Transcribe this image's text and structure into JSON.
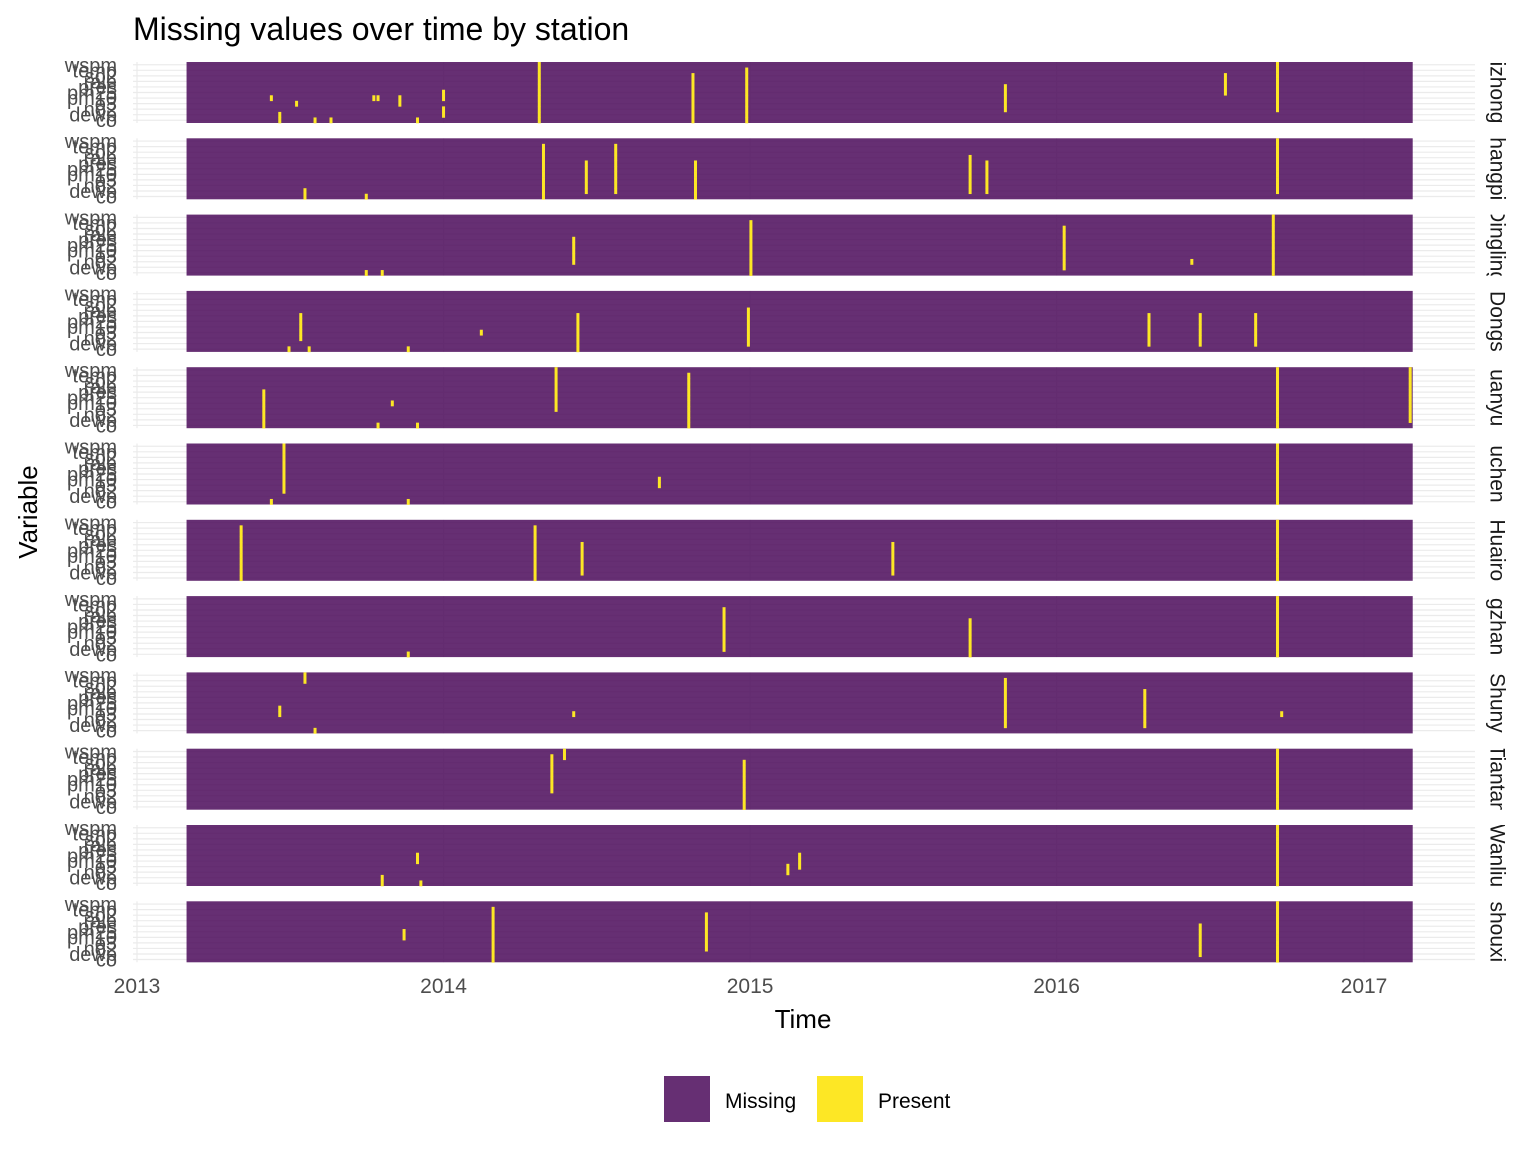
{
  "chart_data": {
    "type": "heatmap",
    "title": "Missing values over time by station",
    "xlabel": "Time",
    "ylabel": "Variable",
    "x_ticks": [
      "2013",
      "2014",
      "2015",
      "2016",
      "2017"
    ],
    "x_range": [
      "2013-03-01",
      "2017-02-28"
    ],
    "y_tick_labels": [
      "wspm",
      "temp",
      "so2",
      "rain",
      "pres",
      "pm25",
      "pm10",
      "o3",
      "no2",
      "dewp",
      "co"
    ],
    "stations": [
      "Aotizhongxin",
      "Changping",
      "Dingling",
      "Dongsi",
      "Guanyuan",
      "Gucheng",
      "Huairou",
      "Nongzhanguan",
      "Shunyi",
      "Tiantan",
      "Wanliu",
      "Wanshouxigong"
    ],
    "station_labels_visible": [
      "izhong",
      "hangpi",
      "Dingling",
      "Dongs",
      "uanyu",
      "uchen",
      "Huairo",
      "gzhan",
      "Shuny",
      "Tiantan",
      "Wanliu",
      "shouxi"
    ],
    "legend": {
      "position": "bottom",
      "entries": [
        {
          "label": "Missing",
          "color": "#440154"
        },
        {
          "label": "Present",
          "color": "#FDE725"
        }
      ]
    },
    "fill_alpha_missing": 0.82,
    "present_events": [
      [
        {
          "date": "2013-06-10",
          "vars": [
            "pm10"
          ]
        },
        {
          "date": "2013-06-20",
          "vars": [
            "dewp",
            "co"
          ]
        },
        {
          "date": "2013-07-10",
          "vars": [
            "o3"
          ]
        },
        {
          "date": "2013-08-01",
          "vars": [
            "co"
          ]
        },
        {
          "date": "2013-08-20",
          "vars": [
            "co"
          ]
        },
        {
          "date": "2013-10-10",
          "vars": [
            "pm10"
          ]
        },
        {
          "date": "2013-10-15",
          "vars": [
            "pm10"
          ]
        },
        {
          "date": "2013-11-10",
          "vars": [
            "pm10",
            "o3"
          ]
        },
        {
          "date": "2013-12-01",
          "vars": [
            "co"
          ]
        },
        {
          "date": "2014-01-01",
          "vars": [
            "pm25",
            "pm10",
            "no2",
            "dewp"
          ]
        },
        {
          "date": "2014-04-25",
          "vars": [
            "wspm",
            "temp",
            "so2",
            "rain",
            "pres",
            "pm25",
            "pm10",
            "o3",
            "no2",
            "dewp",
            "co"
          ]
        },
        {
          "date": "2014-10-25",
          "vars": [
            "so2",
            "rain",
            "pres",
            "pm25",
            "pm10",
            "o3",
            "no2",
            "dewp",
            "co"
          ]
        },
        {
          "date": "2014-12-28",
          "vars": [
            "temp",
            "so2",
            "rain",
            "pres",
            "pm25",
            "pm10",
            "o3",
            "no2",
            "dewp",
            "co"
          ]
        },
        {
          "date": "2015-11-01",
          "vars": [
            "pres",
            "pm25",
            "pm10",
            "o3",
            "no2"
          ]
        },
        {
          "date": "2016-07-20",
          "vars": [
            "so2",
            "rain",
            "pres",
            "pm25"
          ]
        },
        {
          "date": "2016-09-20",
          "vars": [
            "wspm",
            "temp",
            "so2",
            "rain",
            "pres",
            "pm25",
            "pm10",
            "o3",
            "no2"
          ]
        }
      ],
      [
        {
          "date": "2013-07-20",
          "vars": [
            "dewp",
            "co"
          ]
        },
        {
          "date": "2013-10-01",
          "vars": [
            "co"
          ]
        },
        {
          "date": "2014-04-30",
          "vars": [
            "temp",
            "so2",
            "rain",
            "pres",
            "pm25",
            "pm10",
            "o3",
            "no2",
            "dewp",
            "co"
          ]
        },
        {
          "date": "2014-06-20",
          "vars": [
            "pres",
            "pm25",
            "pm10",
            "o3",
            "no2",
            "dewp"
          ]
        },
        {
          "date": "2014-07-25",
          "vars": [
            "temp",
            "so2",
            "rain",
            "pres",
            "pm25",
            "pm10",
            "o3",
            "no2",
            "dewp"
          ]
        },
        {
          "date": "2014-10-28",
          "vars": [
            "pres",
            "pm25",
            "pm10",
            "o3",
            "no2",
            "dewp",
            "co"
          ]
        },
        {
          "date": "2015-09-20",
          "vars": [
            "rain",
            "pres",
            "pm25",
            "pm10",
            "o3",
            "no2",
            "dewp"
          ]
        },
        {
          "date": "2015-10-10",
          "vars": [
            "pres",
            "pm25",
            "pm10",
            "o3",
            "no2",
            "dewp"
          ]
        },
        {
          "date": "2016-09-20",
          "vars": [
            "wspm",
            "temp",
            "so2",
            "rain",
            "pres",
            "pm25",
            "pm10",
            "o3",
            "no2",
            "dewp"
          ]
        }
      ],
      [
        {
          "date": "2013-10-01",
          "vars": [
            "co"
          ]
        },
        {
          "date": "2013-10-20",
          "vars": [
            "co"
          ]
        },
        {
          "date": "2014-06-05",
          "vars": [
            "pres",
            "pm25",
            "pm10",
            "o3",
            "no2"
          ]
        },
        {
          "date": "2015-01-02",
          "vars": [
            "temp",
            "so2",
            "rain",
            "pres",
            "pm25",
            "pm10",
            "o3",
            "no2",
            "dewp",
            "co"
          ]
        },
        {
          "date": "2016-01-10",
          "vars": [
            "so2",
            "rain",
            "pres",
            "pm25",
            "pm10",
            "o3",
            "no2",
            "dewp"
          ]
        },
        {
          "date": "2016-06-10",
          "vars": [
            "no2"
          ]
        },
        {
          "date": "2016-09-15",
          "vars": [
            "wspm",
            "temp",
            "so2",
            "rain",
            "pres",
            "pm25",
            "pm10",
            "o3",
            "no2",
            "dewp",
            "co"
          ]
        }
      ],
      [
        {
          "date": "2013-07-01",
          "vars": [
            "co"
          ]
        },
        {
          "date": "2013-07-25",
          "vars": [
            "co"
          ]
        },
        {
          "date": "2013-07-15",
          "vars": [
            "pres",
            "pm25",
            "pm10",
            "o3",
            "no2"
          ]
        },
        {
          "date": "2013-11-20",
          "vars": [
            "co"
          ]
        },
        {
          "date": "2014-02-15",
          "vars": [
            "o3"
          ]
        },
        {
          "date": "2014-06-10",
          "vars": [
            "pres",
            "pm25",
            "pm10",
            "o3",
            "no2",
            "dewp",
            "co"
          ]
        },
        {
          "date": "2014-12-30",
          "vars": [
            "rain",
            "pres",
            "pm25",
            "pm10",
            "o3",
            "no2",
            "dewp"
          ]
        },
        {
          "date": "2016-04-20",
          "vars": [
            "pres",
            "pm25",
            "pm10",
            "o3",
            "no2",
            "dewp"
          ]
        },
        {
          "date": "2016-06-20",
          "vars": [
            "pres",
            "pm25",
            "pm10",
            "o3",
            "no2",
            "dewp"
          ]
        },
        {
          "date": "2016-08-25",
          "vars": [
            "pres",
            "pm25",
            "pm10",
            "o3",
            "no2",
            "dewp"
          ]
        }
      ],
      [
        {
          "date": "2013-06-01",
          "vars": [
            "pres",
            "pm25",
            "pm10",
            "o3",
            "no2",
            "dewp",
            "co"
          ]
        },
        {
          "date": "2013-11-01",
          "vars": [
            "pm10"
          ]
        },
        {
          "date": "2013-10-15",
          "vars": [
            "co"
          ]
        },
        {
          "date": "2013-12-01",
          "vars": [
            "co"
          ]
        },
        {
          "date": "2014-05-15",
          "vars": [
            "wspm",
            "temp",
            "so2",
            "rain",
            "pres",
            "pm25",
            "pm10",
            "o3"
          ]
        },
        {
          "date": "2014-10-20",
          "vars": [
            "temp",
            "so2",
            "rain",
            "pres",
            "pm25",
            "pm10",
            "o3",
            "no2",
            "dewp",
            "co"
          ]
        },
        {
          "date": "2016-09-20",
          "vars": [
            "wspm",
            "temp",
            "so2",
            "rain",
            "pres",
            "pm25",
            "pm10",
            "o3",
            "no2",
            "dewp",
            "co"
          ]
        },
        {
          "date": "2017-02-25",
          "vars": [
            "wspm",
            "temp",
            "so2",
            "rain",
            "pres",
            "pm25",
            "pm10",
            "o3",
            "no2",
            "dewp"
          ]
        }
      ],
      [
        {
          "date": "2013-06-25",
          "vars": [
            "wspm",
            "temp",
            "so2",
            "rain",
            "pres",
            "pm25",
            "pm10",
            "o3",
            "no2"
          ]
        },
        {
          "date": "2013-06-10",
          "vars": [
            "co"
          ]
        },
        {
          "date": "2013-11-20",
          "vars": [
            "co"
          ]
        },
        {
          "date": "2014-09-15",
          "vars": [
            "pm10",
            "o3"
          ]
        },
        {
          "date": "2016-09-20",
          "vars": [
            "wspm",
            "temp",
            "so2",
            "rain",
            "pres",
            "pm25",
            "pm10",
            "o3",
            "no2",
            "dewp",
            "co"
          ]
        }
      ],
      [
        {
          "date": "2013-05-05",
          "vars": [
            "temp",
            "so2",
            "rain",
            "pres",
            "pm25",
            "pm10",
            "o3",
            "no2",
            "dewp",
            "co"
          ]
        },
        {
          "date": "2014-04-20",
          "vars": [
            "temp",
            "so2",
            "rain",
            "pres",
            "pm25",
            "pm10",
            "o3",
            "no2",
            "dewp",
            "co"
          ]
        },
        {
          "date": "2014-06-15",
          "vars": [
            "pres",
            "pm25",
            "pm10",
            "o3",
            "no2",
            "dewp"
          ]
        },
        {
          "date": "2015-06-20",
          "vars": [
            "pres",
            "pm25",
            "pm10",
            "o3",
            "no2",
            "dewp"
          ]
        },
        {
          "date": "2016-09-20",
          "vars": [
            "wspm",
            "temp",
            "so2",
            "rain",
            "pres",
            "pm25",
            "pm10",
            "o3",
            "no2",
            "dewp",
            "co"
          ]
        }
      ],
      [
        {
          "date": "2013-11-20",
          "vars": [
            "co"
          ]
        },
        {
          "date": "2014-12-01",
          "vars": [
            "so2",
            "rain",
            "pres",
            "pm25",
            "pm10",
            "o3",
            "no2",
            "dewp"
          ]
        },
        {
          "date": "2015-09-20",
          "vars": [
            "pres",
            "pm25",
            "pm10",
            "o3",
            "no2",
            "dewp",
            "co"
          ]
        },
        {
          "date": "2016-09-20",
          "vars": [
            "wspm",
            "temp",
            "so2",
            "rain",
            "pres",
            "pm25",
            "pm10",
            "o3",
            "no2",
            "dewp",
            "co"
          ]
        }
      ],
      [
        {
          "date": "2013-07-20",
          "vars": [
            "wspm",
            "temp"
          ]
        },
        {
          "date": "2013-06-20",
          "vars": [
            "pm10",
            "o3"
          ]
        },
        {
          "date": "2013-08-01",
          "vars": [
            "co"
          ]
        },
        {
          "date": "2014-06-05",
          "vars": [
            "o3"
          ]
        },
        {
          "date": "2015-11-01",
          "vars": [
            "temp",
            "so2",
            "rain",
            "pres",
            "pm25",
            "pm10",
            "o3",
            "no2",
            "dewp"
          ]
        },
        {
          "date": "2016-04-15",
          "vars": [
            "rain",
            "pres",
            "pm25",
            "pm10",
            "o3",
            "no2",
            "dewp"
          ]
        },
        {
          "date": "2016-09-25",
          "vars": [
            "o3"
          ]
        }
      ],
      [
        {
          "date": "2014-05-10",
          "vars": [
            "temp",
            "so2",
            "rain",
            "pres",
            "pm25",
            "pm10",
            "o3"
          ]
        },
        {
          "date": "2014-05-25",
          "vars": [
            "wspm",
            "temp"
          ]
        },
        {
          "date": "2014-12-25",
          "vars": [
            "so2",
            "rain",
            "pres",
            "pm25",
            "pm10",
            "o3",
            "no2",
            "dewp",
            "co"
          ]
        },
        {
          "date": "2016-09-20",
          "vars": [
            "wspm",
            "temp",
            "so2",
            "rain",
            "pres",
            "pm25",
            "pm10",
            "o3",
            "no2",
            "dewp",
            "co"
          ]
        }
      ],
      [
        {
          "date": "2013-10-20",
          "vars": [
            "dewp",
            "co"
          ]
        },
        {
          "date": "2013-12-01",
          "vars": [
            "pm25",
            "pm10"
          ]
        },
        {
          "date": "2013-12-05",
          "vars": [
            "co"
          ]
        },
        {
          "date": "2015-02-15",
          "vars": [
            "o3",
            "no2"
          ]
        },
        {
          "date": "2015-03-01",
          "vars": [
            "pm25",
            "pm10",
            "o3"
          ]
        },
        {
          "date": "2016-09-20",
          "vars": [
            "wspm",
            "temp",
            "so2",
            "rain",
            "pres",
            "pm25",
            "pm10",
            "o3",
            "no2",
            "dewp",
            "co"
          ]
        }
      ],
      [
        {
          "date": "2013-11-15",
          "vars": [
            "pm25",
            "pm10"
          ]
        },
        {
          "date": "2014-03-01",
          "vars": [
            "temp",
            "so2",
            "rain",
            "pres",
            "pm25",
            "pm10",
            "o3",
            "no2",
            "dewp",
            "co"
          ]
        },
        {
          "date": "2014-11-10",
          "vars": [
            "so2",
            "rain",
            "pres",
            "pm25",
            "pm10",
            "o3",
            "no2"
          ]
        },
        {
          "date": "2016-06-20",
          "vars": [
            "pres",
            "pm25",
            "pm10",
            "o3",
            "no2",
            "dewp"
          ]
        },
        {
          "date": "2016-09-20",
          "vars": [
            "wspm",
            "temp",
            "so2",
            "rain",
            "pres",
            "pm25",
            "pm10",
            "o3",
            "no2",
            "dewp",
            "co"
          ]
        }
      ]
    ]
  }
}
